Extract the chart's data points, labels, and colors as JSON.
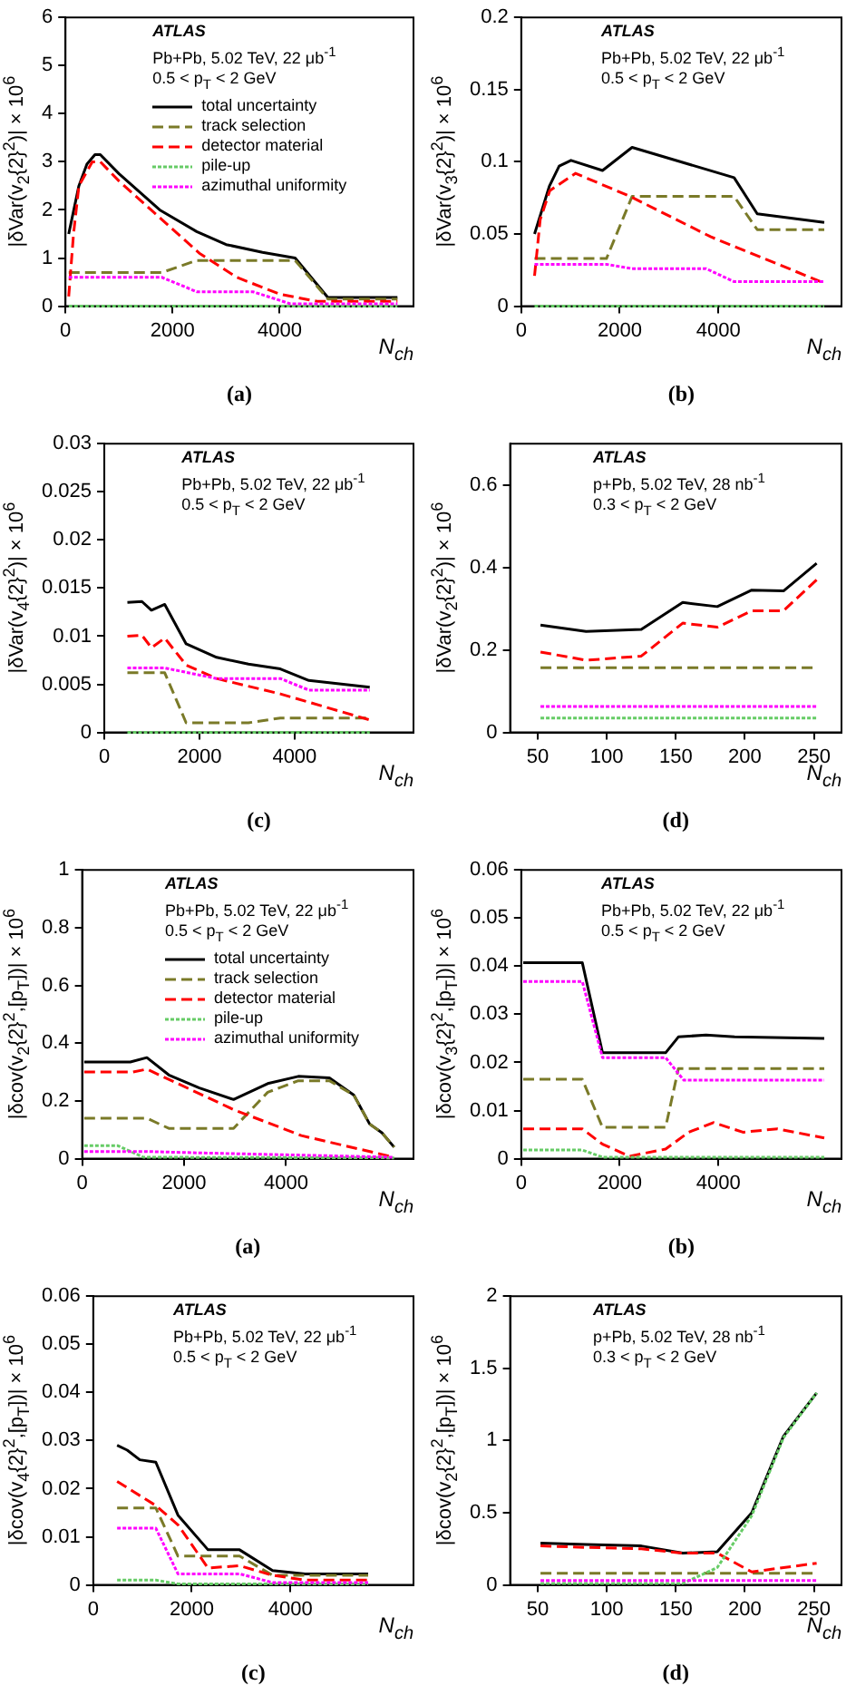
{
  "chart_data": [
    {
      "type": "line",
      "title": "(a)",
      "xlabel": "N$_{ch}$",
      "ylabel": "|δVar(v$_{2}${2}$^{2}$)| × 10$^{6}$",
      "annotations": [
        "ATLAS",
        "Pb+Pb, 5.02 TeV, 22 μb$^{-1}$",
        "0.5 < p$_{T}$ < 2 GeV"
      ],
      "xlim": [
        0,
        6500
      ],
      "xticks": [
        0,
        2000,
        4000
      ],
      "ylim": [
        0,
        6
      ],
      "yticks": [
        0,
        1,
        2,
        3,
        4,
        5,
        6
      ],
      "legend": "top",
      "marker": "none",
      "series": [
        {
          "name": "total uncertainty",
          "color": "#000000",
          "line_style": "solid",
          "x": [
            60,
            250,
            400,
            550,
            650,
            1000,
            1760,
            2450,
            3000,
            3680,
            4290,
            4900,
            6200
          ],
          "values": [
            1.5,
            2.5,
            2.95,
            3.15,
            3.15,
            2.75,
            2.0,
            1.55,
            1.28,
            1.12,
            1.0,
            0.18,
            0.18
          ]
        },
        {
          "name": "track selection",
          "color": "#7a7a28",
          "line_style": "dashed",
          "x": [
            60,
            1800,
            2450,
            4290,
            4900,
            6200
          ],
          "values": [
            0.7,
            0.7,
            0.95,
            0.95,
            0.15,
            0.15
          ]
        },
        {
          "name": "detector material",
          "color": "#ff0000",
          "line_style": "dashed",
          "x": [
            60,
            150,
            250,
            500,
            650,
            1000,
            1800,
            2500,
            3200,
            4000,
            4700,
            6200
          ],
          "values": [
            0.2,
            1.5,
            2.5,
            3.0,
            3.0,
            2.6,
            1.8,
            1.1,
            0.6,
            0.25,
            0.1,
            0.1
          ]
        },
        {
          "name": "pile-up",
          "color": "#66cc66",
          "line_style": "dotted",
          "x": [
            60,
            6200
          ],
          "values": [
            0,
            0
          ]
        },
        {
          "name": "azimuthal uniformity",
          "color": "#ff00ff",
          "line_style": "dotted",
          "x": [
            60,
            1800,
            2450,
            3500,
            4200,
            6200
          ],
          "values": [
            0.6,
            0.6,
            0.3,
            0.3,
            0.05,
            0.05
          ]
        }
      ]
    },
    {
      "type": "line",
      "title": "(b)",
      "xlabel": "N$_{ch}$",
      "ylabel": "|δVar(v$_{3}${2}$^{2}$)| × 10$^{6}$",
      "annotations": [
        "ATLAS",
        "Pb+Pb, 5.02 TeV, 22 μb$^{-1}$",
        "0.5 < p$_{T}$ < 2 GeV"
      ],
      "xlim": [
        0,
        6500
      ],
      "xticks": [
        0,
        2000,
        4000
      ],
      "ylim": [
        0,
        0.2
      ],
      "yticks": [
        0,
        0.05,
        0.1,
        0.15,
        0.2
      ],
      "marker": "none",
      "series": [
        {
          "color": "#000000",
          "line_style": "solid",
          "x": [
            270,
            570,
            770,
            1010,
            1650,
            2250,
            4320,
            4790,
            6150
          ],
          "values": [
            0.05,
            0.083,
            0.097,
            0.101,
            0.094,
            0.11,
            0.089,
            0.064,
            0.058
          ]
        },
        {
          "color": "#7a7a28",
          "line_style": "dashed",
          "x": [
            270,
            1730,
            2250,
            4320,
            4790,
            6150
          ],
          "values": [
            0.033,
            0.033,
            0.076,
            0.076,
            0.053,
            0.053
          ]
        },
        {
          "color": "#ff0000",
          "line_style": "dashed",
          "x": [
            270,
            385,
            580,
            1100,
            2210,
            3850,
            6150
          ],
          "values": [
            0.021,
            0.06,
            0.08,
            0.092,
            0.076,
            0.048,
            0.016
          ]
        },
        {
          "color": "#66cc66",
          "line_style": "dotted",
          "x": [
            270,
            6150
          ],
          "values": [
            0,
            0
          ]
        },
        {
          "color": "#ff00ff",
          "line_style": "dotted",
          "x": [
            270,
            1730,
            2250,
            3750,
            4320,
            6150
          ],
          "values": [
            0.029,
            0.029,
            0.026,
            0.026,
            0.017,
            0.017
          ]
        }
      ]
    },
    {
      "type": "line",
      "title": "(c)",
      "xlabel": "N$_{ch}$",
      "ylabel": "|δVar(v$_{4}${2}$^{2}$)| × 10$^{6}$",
      "annotations": [
        "ATLAS",
        "Pb+Pb, 5.02 TeV, 22 μb$^{-1}$",
        "0.5 < p$_{T}$ < 2 GeV"
      ],
      "xlim": [
        0,
        6500
      ],
      "xticks": [
        0,
        2000,
        4000
      ],
      "ylim": [
        0,
        0.03
      ],
      "yticks": [
        0,
        0.005,
        0.01,
        0.015,
        0.02,
        0.025,
        0.03
      ],
      "marker": "none",
      "series": [
        {
          "color": "#000000",
          "line_style": "solid",
          "x": [
            485,
            790,
            990,
            1270,
            1720,
            2360,
            3030,
            3700,
            4300,
            5580
          ],
          "values": [
            0.0135,
            0.0136,
            0.0127,
            0.0133,
            0.0092,
            0.0078,
            0.0071,
            0.0066,
            0.0054,
            0.0047
          ]
        },
        {
          "color": "#7a7a28",
          "line_style": "dashed",
          "x": [
            485,
            1270,
            1720,
            3030,
            3700,
            5580
          ],
          "values": [
            0.0062,
            0.0062,
            0.001,
            0.001,
            0.0015,
            0.0015
          ]
        },
        {
          "color": "#ff0000",
          "line_style": "dashed",
          "x": [
            485,
            790,
            990,
            1270,
            1720,
            2360,
            3700,
            5580
          ],
          "values": [
            0.01,
            0.0101,
            0.0088,
            0.0098,
            0.007,
            0.0056,
            0.004,
            0.0013
          ]
        },
        {
          "color": "#66cc66",
          "line_style": "dotted",
          "x": [
            485,
            5580
          ],
          "values": [
            0,
            0
          ]
        },
        {
          "color": "#ff00ff",
          "line_style": "dotted",
          "x": [
            485,
            1270,
            2360,
            3700,
            4300,
            5580
          ],
          "values": [
            0.0067,
            0.0067,
            0.0056,
            0.0056,
            0.0044,
            0.0044
          ]
        }
      ]
    },
    {
      "type": "line",
      "title": "(d)",
      "xlabel": "N$_{ch}$",
      "ylabel": "|δVar(v$_{2}${2}$^{2}$)| × 10$^{6}$",
      "annotations": [
        "ATLAS",
        "p+Pb, 5.02 TeV, 28 nb$^{-1}$",
        "0.3 < p$_{T}$ < 2 GeV"
      ],
      "xlim": [
        30,
        270
      ],
      "xticks": [
        50,
        100,
        150,
        200,
        250
      ],
      "ylim": [
        0,
        0.7
      ],
      "yticks": [
        0,
        0.2,
        0.4,
        0.6
      ],
      "marker": "none",
      "series": [
        {
          "color": "#000000",
          "line_style": "solid",
          "x": [
            52,
            85,
            125,
            155,
            180,
            205,
            228,
            252
          ],
          "values": [
            0.26,
            0.245,
            0.25,
            0.315,
            0.305,
            0.345,
            0.343,
            0.41
          ]
        },
        {
          "color": "#7a7a28",
          "line_style": "dashed",
          "x": [
            52,
            252
          ],
          "values": [
            0.157,
            0.157
          ]
        },
        {
          "color": "#ff0000",
          "line_style": "dashed",
          "x": [
            52,
            85,
            125,
            155,
            180,
            205,
            228,
            252
          ],
          "values": [
            0.195,
            0.175,
            0.185,
            0.265,
            0.255,
            0.295,
            0.295,
            0.37
          ]
        },
        {
          "color": "#66cc66",
          "line_style": "dotted",
          "x": [
            52,
            252
          ],
          "values": [
            0.035,
            0.035
          ]
        },
        {
          "color": "#ff00ff",
          "line_style": "dotted",
          "x": [
            52,
            252
          ],
          "values": [
            0.063,
            0.063
          ]
        }
      ]
    },
    {
      "type": "line",
      "title": "(a)",
      "xlabel": "N$_{ch}$",
      "ylabel": "|δcov(v$_{2}${2}$^{2}$,[p$_{T}$])| × 10$^{6}$",
      "annotations": [
        "ATLAS",
        "Pb+Pb, 5.02 TeV, 22 μb$^{-1}$",
        "0.5 < p$_{T}$ < 2 GeV"
      ],
      "xlim": [
        0,
        6500
      ],
      "xticks": [
        0,
        2000,
        4000
      ],
      "ylim": [
        0,
        1
      ],
      "yticks": [
        0,
        0.2,
        0.4,
        0.6,
        0.8,
        1
      ],
      "legend": "top",
      "marker": "none",
      "series": [
        {
          "name": "total uncertainty",
          "color": "#000000",
          "line_style": "solid",
          "x": [
            40,
            945,
            1270,
            1700,
            2300,
            2970,
            3640,
            4240,
            4850,
            5330,
            5640,
            5880,
            6120
          ],
          "values": [
            0.335,
            0.335,
            0.35,
            0.29,
            0.245,
            0.205,
            0.26,
            0.285,
            0.28,
            0.22,
            0.12,
            0.09,
            0.04
          ]
        },
        {
          "name": "track selection",
          "color": "#7a7a28",
          "line_style": "dashed",
          "x": [
            40,
            1270,
            1700,
            2970,
            3640,
            4240,
            4850,
            5330,
            5640,
            5880,
            6120
          ],
          "values": [
            0.14,
            0.14,
            0.105,
            0.105,
            0.23,
            0.27,
            0.27,
            0.22,
            0.12,
            0.09,
            0.04
          ]
        },
        {
          "name": "detector material",
          "color": "#ff0000",
          "line_style": "dashed",
          "x": [
            40,
            1000,
            1270,
            2970,
            4300,
            6120
          ],
          "values": [
            0.3,
            0.3,
            0.31,
            0.17,
            0.08,
            0.005
          ]
        },
        {
          "name": "pile-up",
          "color": "#66cc66",
          "line_style": "dotted",
          "x": [
            40,
            700,
            1200,
            6120
          ],
          "values": [
            0.045,
            0.045,
            0.005,
            0.003
          ]
        },
        {
          "name": "azimuthal uniformity",
          "color": "#ff00ff",
          "line_style": "dotted",
          "x": [
            40,
            1270,
            2300,
            6120
          ],
          "values": [
            0.025,
            0.025,
            0.02,
            0.005
          ]
        }
      ]
    },
    {
      "type": "line",
      "title": "(b)",
      "xlabel": "N$_{ch}$",
      "ylabel": "|δcov(v$_{3}${2}$^{2}$,[p$_{T}$])| × 10$^{6}$",
      "annotations": [
        "ATLAS",
        "Pb+Pb, 5.02 TeV, 22 μb$^{-1}$",
        "0.5 < p$_{T}$ < 2 GeV"
      ],
      "xlim": [
        0,
        6500
      ],
      "xticks": [
        0,
        2000,
        4000
      ],
      "ylim": [
        0,
        0.06
      ],
      "yticks": [
        0,
        0.01,
        0.02,
        0.03,
        0.04,
        0.05,
        0.06
      ],
      "marker": "none",
      "series": [
        {
          "color": "#000000",
          "line_style": "solid",
          "x": [
            40,
            1240,
            1650,
            2930,
            3190,
            3750,
            4330,
            6150
          ],
          "values": [
            0.0407,
            0.0407,
            0.022,
            0.022,
            0.0253,
            0.0257,
            0.0253,
            0.025
          ]
        },
        {
          "color": "#7a7a28",
          "line_style": "dashed",
          "x": [
            40,
            1240,
            1650,
            2930,
            3190,
            6150
          ],
          "values": [
            0.0165,
            0.0165,
            0.0065,
            0.0065,
            0.0187,
            0.0187
          ]
        },
        {
          "color": "#ff0000",
          "line_style": "dashed",
          "x": [
            40,
            1240,
            1650,
            2200,
            2930,
            3400,
            3900,
            4500,
            5200,
            6150
          ],
          "values": [
            0.0062,
            0.0062,
            0.003,
            0.0005,
            0.002,
            0.0055,
            0.0075,
            0.0055,
            0.0062,
            0.0043
          ]
        },
        {
          "color": "#66cc66",
          "line_style": "dotted",
          "x": [
            40,
            1240,
            1650,
            6150
          ],
          "values": [
            0.0018,
            0.0018,
            0.0003,
            0.0003
          ]
        },
        {
          "color": "#ff00ff",
          "line_style": "dotted",
          "x": [
            40,
            1240,
            1650,
            2930,
            3300,
            6150
          ],
          "values": [
            0.0368,
            0.0368,
            0.021,
            0.021,
            0.0163,
            0.0163
          ]
        }
      ]
    },
    {
      "type": "line",
      "title": "(c)",
      "xlabel": "N$_{ch}$",
      "ylabel": "|δcov(v$_{4}${2}$^{2}$,[p$_{T}$])| × 10$^{6}$",
      "annotations": [
        "ATLAS",
        "Pb+Pb, 5.02 TeV, 22 μb$^{-1}$",
        "0.5 < p$_{T}$ < 2 GeV"
      ],
      "xlim": [
        0,
        6500
      ],
      "xticks": [
        0,
        2000,
        4000
      ],
      "ylim": [
        0,
        0.06
      ],
      "yticks": [
        0,
        0.01,
        0.02,
        0.03,
        0.04,
        0.05,
        0.06
      ],
      "marker": "none",
      "series": [
        {
          "color": "#000000",
          "line_style": "solid",
          "x": [
            485,
            690,
            945,
            1270,
            1720,
            2330,
            2970,
            3640,
            4300,
            5580
          ],
          "values": [
            0.029,
            0.028,
            0.026,
            0.0255,
            0.0145,
            0.0073,
            0.0073,
            0.003,
            0.0023,
            0.0023
          ]
        },
        {
          "color": "#7a7a28",
          "line_style": "dashed",
          "x": [
            485,
            1270,
            1720,
            2970,
            3640,
            5580
          ],
          "values": [
            0.016,
            0.016,
            0.006,
            0.006,
            0.002,
            0.002
          ]
        },
        {
          "color": "#ff0000",
          "line_style": "dashed",
          "x": [
            485,
            1270,
            1720,
            2330,
            2970,
            3640,
            4300,
            5580
          ],
          "values": [
            0.0215,
            0.0165,
            0.0125,
            0.0035,
            0.004,
            0.002,
            0.001,
            0.001
          ]
        },
        {
          "color": "#66cc66",
          "line_style": "dotted",
          "x": [
            485,
            1270,
            1720,
            5580
          ],
          "values": [
            0.001,
            0.001,
            0.0002,
            0.0002
          ]
        },
        {
          "color": "#ff00ff",
          "line_style": "dotted",
          "x": [
            485,
            1270,
            1720,
            2970,
            3640,
            5580
          ],
          "values": [
            0.0118,
            0.0118,
            0.0023,
            0.0023,
            0.0005,
            0.0005
          ]
        }
      ]
    },
    {
      "type": "line",
      "title": "(d)",
      "xlabel": "N$_{ch}$",
      "ylabel": "|δcov(v$_{2}${2}$^{2}$,[p$_{T}$])| × 10$^{6}$",
      "annotations": [
        "ATLAS",
        "p+Pb, 5.02 TeV, 28 nb$^{-1}$",
        "0.3 < p$_{T}$ < 2 GeV"
      ],
      "xlim": [
        30,
        270
      ],
      "xticks": [
        50,
        100,
        150,
        200,
        250
      ],
      "ylim": [
        0,
        2
      ],
      "yticks": [
        0,
        0.5,
        1,
        1.5,
        2
      ],
      "marker": "none",
      "series": [
        {
          "color": "#000000",
          "line_style": "solid",
          "x": [
            52,
            85,
            125,
            155,
            180,
            205,
            228,
            252
          ],
          "values": [
            0.29,
            0.28,
            0.27,
            0.22,
            0.23,
            0.5,
            1.03,
            1.33
          ]
        },
        {
          "color": "#7a7a28",
          "line_style": "dashed",
          "x": [
            52,
            252
          ],
          "values": [
            0.08,
            0.08
          ]
        },
        {
          "color": "#ff0000",
          "line_style": "dashed",
          "x": [
            52,
            85,
            125,
            155,
            180,
            205,
            228,
            252
          ],
          "values": [
            0.27,
            0.26,
            0.25,
            0.22,
            0.22,
            0.09,
            0.12,
            0.15
          ]
        },
        {
          "color": "#66cc66",
          "line_style": "dotted",
          "x": [
            52,
            155,
            180,
            205,
            228,
            252
          ],
          "values": [
            0.01,
            0.01,
            0.12,
            0.48,
            1.02,
            1.33
          ]
        },
        {
          "color": "#ff00ff",
          "line_style": "dotted",
          "x": [
            52,
            252
          ],
          "values": [
            0.03,
            0.03
          ]
        }
      ]
    }
  ]
}
